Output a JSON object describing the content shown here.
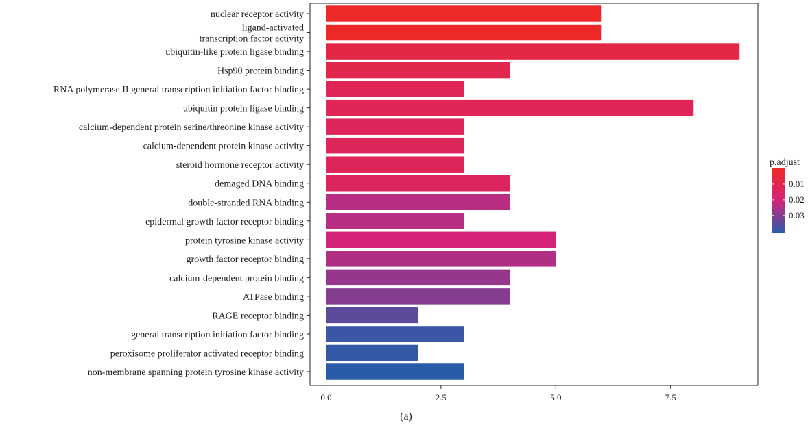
{
  "chart_data": {
    "type": "bar",
    "orientation": "horizontal",
    "categories": [
      "nuclear receptor activity",
      "ligand-activated\ntranscription factor activity",
      "ubiquitin-like protein ligase binding",
      "Hsp90 protein binding",
      "RNA polymerase II general transcription initiation factor binding",
      "ubiquitin protein ligase binding",
      "calcium-dependent protein serine/threonine kinase activity",
      "calcium-dependent protein kinase activity",
      "steroid hormone receptor activity",
      "demaged DNA binding",
      "double-stranded RNA binding",
      "epidermal growth factor receptor binding",
      "protein tyrosine kinase activity",
      "growth factor receptor binding",
      "calcium-dependent protein binding",
      "ATPase binding",
      "RAGE receptor binding",
      "general transcription initiation factor binding",
      "peroxisome proliferator activated receptor binding",
      "non-membrane spanning protein tyrosine kinase activity"
    ],
    "values": [
      6,
      6,
      9,
      4,
      3,
      8,
      3,
      3,
      3,
      4,
      4,
      3,
      5,
      5,
      4,
      4,
      2,
      3,
      2,
      3
    ],
    "p_adjust": [
      0.001,
      0.001,
      0.008,
      0.01,
      0.012,
      0.012,
      0.013,
      0.013,
      0.013,
      0.014,
      0.024,
      0.024,
      0.02,
      0.025,
      0.028,
      0.03,
      0.035,
      0.039,
      0.04,
      0.041
    ],
    "xlim": [
      -0.35,
      9.4
    ],
    "x_ticks": [
      0,
      2.5,
      5,
      7.5
    ],
    "x_tick_labels": [
      "0.0",
      "2.5",
      "5.0",
      "7.5"
    ],
    "legend": {
      "title": "p.adjust",
      "placement": "right",
      "ticks": [
        0.01,
        0.02,
        0.03
      ],
      "tick_labels": [
        "0.01",
        "0.02",
        "0.03"
      ],
      "range": [
        0.0,
        0.041
      ],
      "color_low": "#ee2a24",
      "color_mid": "#d4237a",
      "color_high": "#2a5ba8"
    },
    "grid": false
  },
  "caption": "(a)"
}
